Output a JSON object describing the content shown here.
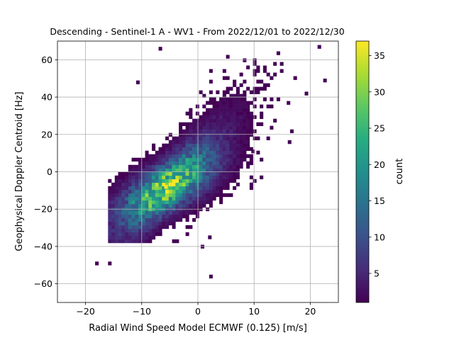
{
  "chart_data": {
    "type": "heatmap",
    "title": "Descending - Sentinel-1 A - WV1 - From 2022/12/01 to 2022/12/30",
    "xlabel": "Radial Wind Speed Model ECMWF (0.125) [m/s]",
    "ylabel": "Geophysical Doppler Centroid [Hz]",
    "xlim": [
      -25,
      25
    ],
    "ylim": [
      -70,
      70
    ],
    "x_ticks": [
      -20,
      -10,
      0,
      10,
      20
    ],
    "x_tick_labels": [
      "−20",
      "−10",
      "0",
      "10",
      "20"
    ],
    "y_ticks": [
      -60,
      -40,
      -20,
      0,
      20,
      40,
      60
    ],
    "y_tick_labels": [
      "−60",
      "−40",
      "−20",
      "0",
      "20",
      "40",
      "60"
    ],
    "grid": true,
    "colormap": "viridis",
    "colorbar": {
      "label": "count",
      "range": [
        1,
        37
      ],
      "ticks": [
        5,
        10,
        15,
        20,
        25,
        30,
        35
      ],
      "tick_labels": [
        "5",
        "10",
        "15",
        "20",
        "25",
        "30",
        "35"
      ]
    },
    "density_model": {
      "description": "2D histogram of counts; density concentrated along a diagonal ridge",
      "peak": {
        "x": -6,
        "y": -9,
        "count": 37
      },
      "ridge_slope_hz_per_ms": 2.7,
      "bin_width_x": 0.6,
      "bin_height_y": 1.9
    },
    "outliers": [
      {
        "x": -18.3,
        "y": -50,
        "count": 1
      },
      {
        "x": -16,
        "y": -50,
        "count": 1
      },
      {
        "x": 2,
        "y": -57,
        "count": 1
      },
      {
        "x": 0.5,
        "y": -41,
        "count": 1
      },
      {
        "x": 1.8,
        "y": -36,
        "count": 1
      },
      {
        "x": 16,
        "y": 15,
        "count": 1
      },
      {
        "x": 19,
        "y": 41,
        "count": 1
      },
      {
        "x": 22.3,
        "y": 48,
        "count": 1
      },
      {
        "x": 21.3,
        "y": 66,
        "count": 1
      },
      {
        "x": -11,
        "y": 47,
        "count": 1
      },
      {
        "x": -7,
        "y": 65,
        "count": 1
      },
      {
        "x": 9.5,
        "y": 10,
        "count": 1
      }
    ]
  }
}
